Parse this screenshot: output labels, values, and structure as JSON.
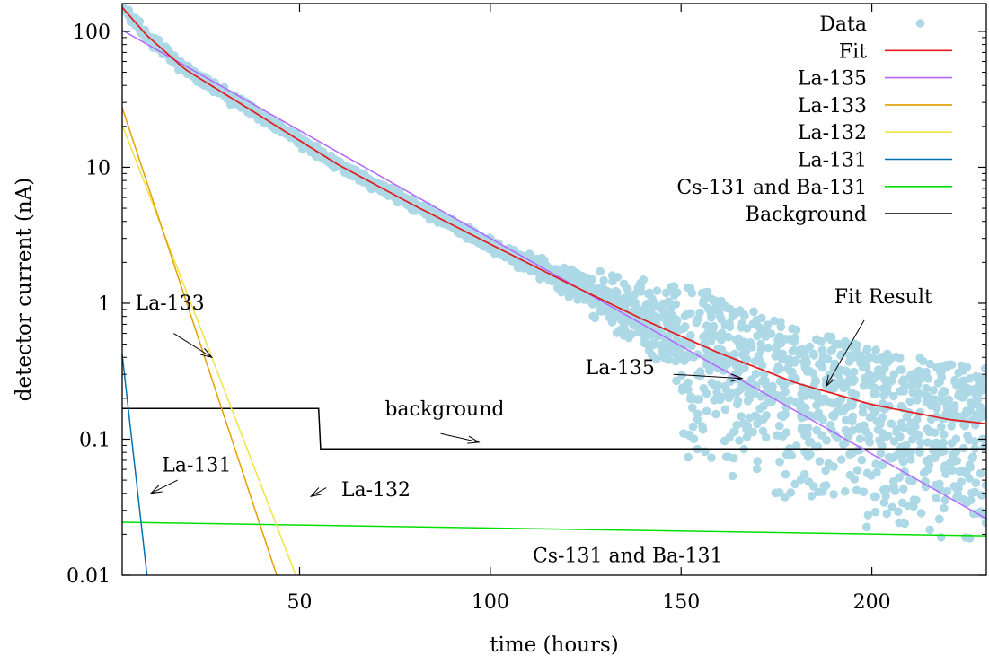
{
  "chart_data": {
    "type": "scatter",
    "xlabel": "time (hours)",
    "ylabel": "detector current (nA)",
    "y_scale": "log",
    "xlim": [
      3.5,
      230
    ],
    "ylim": [
      0.01,
      160
    ],
    "grid": false,
    "legend_position": "top-right",
    "x_ticks": [
      {
        "value": 50,
        "label": "50"
      },
      {
        "value": 100,
        "label": "100"
      },
      {
        "value": 150,
        "label": "150"
      },
      {
        "value": 200,
        "label": "200"
      }
    ],
    "y_ticks": [
      {
        "value": 100,
        "label": "100"
      },
      {
        "value": 10,
        "label": "10"
      },
      {
        "value": 1,
        "label": "1"
      },
      {
        "value": 0.1,
        "label": "0.1"
      },
      {
        "value": 0.01,
        "label": "0.01"
      }
    ],
    "series": [
      {
        "name": "Data",
        "kind": "points",
        "color": "#add8e6",
        "description_values": {
          "x_range": [
            3.5,
            230
          ],
          "y_start": 150,
          "y_at_100h": 3.0,
          "y_at_150h": 0.6,
          "y_at_200h_band": [
            0.015,
            0.35
          ],
          "y_at_230h_band": [
            0.01,
            0.4
          ]
        }
      },
      {
        "name": "Fit",
        "kind": "line",
        "color": "#e41a1c",
        "x": [
          3.5,
          10,
          20,
          40,
          60,
          80,
          100,
          120,
          140,
          160,
          180,
          200,
          220,
          230
        ],
        "y": [
          150,
          93,
          52.5,
          23.6,
          10.5,
          5.25,
          2.72,
          1.42,
          0.76,
          0.43,
          0.26,
          0.18,
          0.14,
          0.13
        ]
      },
      {
        "name": "La-135",
        "kind": "line",
        "color": "#b266ff",
        "x": [
          3.5,
          230
        ],
        "y": [
          102,
          0.026
        ]
      },
      {
        "name": "La-133",
        "kind": "line",
        "color": "#e69f00",
        "x": [
          3.5,
          44
        ],
        "y": [
          27.5,
          0.01
        ]
      },
      {
        "name": "La-132",
        "kind": "line",
        "color": "#f0e442",
        "x": [
          3.5,
          49
        ],
        "y": [
          20.5,
          0.01
        ]
      },
      {
        "name": "La-131",
        "kind": "line",
        "color": "#0072b2",
        "x": [
          3.5,
          10
        ],
        "y": [
          0.42,
          0.01
        ]
      },
      {
        "name": "Cs-131 and Ba-131",
        "kind": "line",
        "color": "#00e000",
        "x": [
          3.5,
          230
        ],
        "y": [
          0.0245,
          0.0195
        ]
      },
      {
        "name": "Background",
        "kind": "step",
        "color": "#000000",
        "x": [
          3.5,
          55,
          55.5,
          230
        ],
        "y": [
          0.168,
          0.168,
          0.085,
          0.085
        ]
      }
    ],
    "annotations": [
      {
        "id": "la133",
        "text": "La-133",
        "text_x": 16,
        "text_y": 0.9,
        "arrow_from": [
          17,
          0.6
        ],
        "arrow_to": [
          27,
          0.4
        ]
      },
      {
        "id": "fit-result",
        "text": "Fit Result",
        "text_x": 203,
        "text_y": 1.0,
        "arrow_from": [
          198,
          0.75
        ],
        "arrow_to": [
          188,
          0.245
        ]
      },
      {
        "id": "la135",
        "text": "La-135",
        "text_x": 134,
        "text_y": 0.3,
        "arrow_from": [
          148,
          0.3
        ],
        "arrow_to": [
          166,
          0.28
        ]
      },
      {
        "id": "background",
        "text": "background",
        "text_x": 88,
        "text_y": 0.15,
        "arrow_from": [
          87,
          0.11
        ],
        "arrow_to": [
          97,
          0.095
        ]
      },
      {
        "id": "la131",
        "text": "La-131",
        "text_x": 23,
        "text_y": 0.058,
        "arrow_from": [
          18,
          0.05
        ],
        "arrow_to": [
          11,
          0.04
        ]
      },
      {
        "id": "la132",
        "text": "La-132",
        "text_x": 70,
        "text_y": 0.038,
        "arrow_from": [
          57,
          0.044
        ],
        "arrow_to": [
          53,
          0.038
        ]
      },
      {
        "id": "cs131",
        "text": "Cs-131 and Ba-131",
        "text_x": 136,
        "text_y": 0.0125,
        "arrow_from": null,
        "arrow_to": null
      }
    ]
  }
}
